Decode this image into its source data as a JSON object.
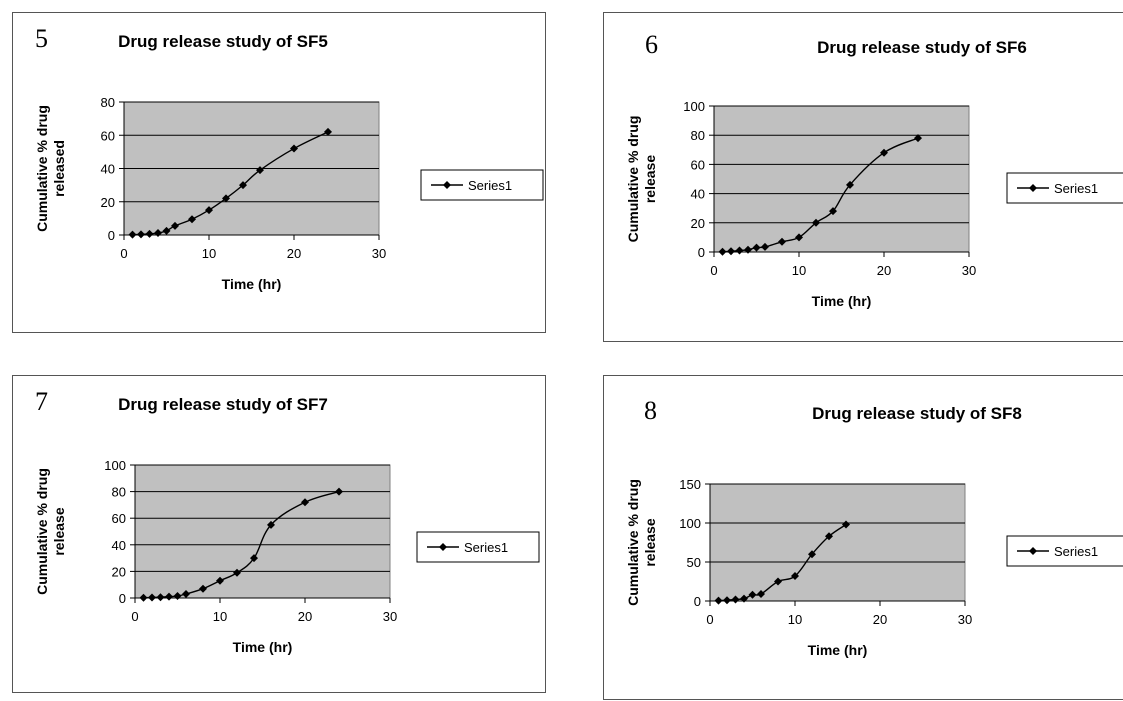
{
  "charts": [
    {
      "number": "5",
      "chart_data": {
        "type": "line",
        "title": "Drug release study of SF5",
        "xlabel": "Time (hr)",
        "ylabel_lines": [
          "Cumulative % drug",
          "released"
        ],
        "xlim": [
          0,
          30
        ],
        "xticks": [
          "0",
          "10",
          "20",
          "30"
        ],
        "ylim": [
          0,
          80
        ],
        "yticks": [
          "0",
          "20",
          "40",
          "60",
          "80"
        ],
        "grid": true,
        "legend_position": "right",
        "series": [
          {
            "name": "Series1",
            "x": [
              1,
              2,
              3,
              4,
              5,
              6,
              8,
              10,
              12,
              14,
              16,
              20,
              24
            ],
            "y": [
              0.2,
              0.4,
              0.7,
              1.2,
              2.5,
              5.5,
              9.5,
              15,
              22,
              30,
              39,
              52,
              62
            ]
          }
        ]
      }
    },
    {
      "number": "6",
      "chart_data": {
        "type": "line",
        "title": "Drug release study of SF6",
        "xlabel": "Time (hr)",
        "ylabel_lines": [
          "Cumulative % drug",
          "release"
        ],
        "xlim": [
          0,
          30
        ],
        "xticks": [
          "0",
          "10",
          "20",
          "30"
        ],
        "ylim": [
          0,
          100
        ],
        "yticks": [
          "0",
          "20",
          "40",
          "60",
          "80",
          "100"
        ],
        "grid": true,
        "legend_position": "right",
        "series": [
          {
            "name": "Series1",
            "x": [
              1,
              2,
              3,
              4,
              5,
              6,
              8,
              10,
              12,
              14,
              16,
              20,
              24
            ],
            "y": [
              0.2,
              0.5,
              1,
              1.5,
              3,
              3.5,
              7,
              10,
              20,
              28,
              46,
              68,
              78
            ]
          }
        ]
      }
    },
    {
      "number": "7",
      "chart_data": {
        "type": "line",
        "title": "Drug release study of SF7",
        "xlabel": "Time (hr)",
        "ylabel_lines": [
          "Cumulative % drug",
          "release"
        ],
        "xlim": [
          0,
          30
        ],
        "xticks": [
          "0",
          "10",
          "20",
          "30"
        ],
        "ylim": [
          0,
          100
        ],
        "yticks": [
          "0",
          "20",
          "40",
          "60",
          "80",
          "100"
        ],
        "grid": true,
        "legend_position": "right",
        "series": [
          {
            "name": "Series1",
            "x": [
              1,
              2,
              3,
              4,
              5,
              6,
              8,
              10,
              12,
              14,
              16,
              20,
              24
            ],
            "y": [
              0.2,
              0.4,
              0.6,
              1,
              1.5,
              3,
              7,
              13,
              19,
              30,
              55,
              72,
              80
            ]
          }
        ]
      }
    },
    {
      "number": "8",
      "chart_data": {
        "type": "line",
        "title": "Drug release study of SF8",
        "xlabel": "Time (hr)",
        "ylabel_lines": [
          "Cumulative % drug",
          "release"
        ],
        "xlim": [
          0,
          30
        ],
        "xticks": [
          "0",
          "10",
          "20",
          "30"
        ],
        "ylim": [
          0,
          150
        ],
        "yticks": [
          "0",
          "50",
          "100",
          "150"
        ],
        "grid": true,
        "legend_position": "right",
        "series": [
          {
            "name": "Series1",
            "x": [
              1,
              2,
              3,
              4,
              5,
              6,
              8,
              10,
              12,
              14,
              16
            ],
            "y": [
              0.5,
              1,
              2,
              3,
              8,
              9,
              25,
              32,
              60,
              83,
              98
            ]
          }
        ]
      }
    }
  ],
  "colors": {
    "plot_bg": "#c0c0c0",
    "gridline": "#000000",
    "series": "#000000"
  }
}
